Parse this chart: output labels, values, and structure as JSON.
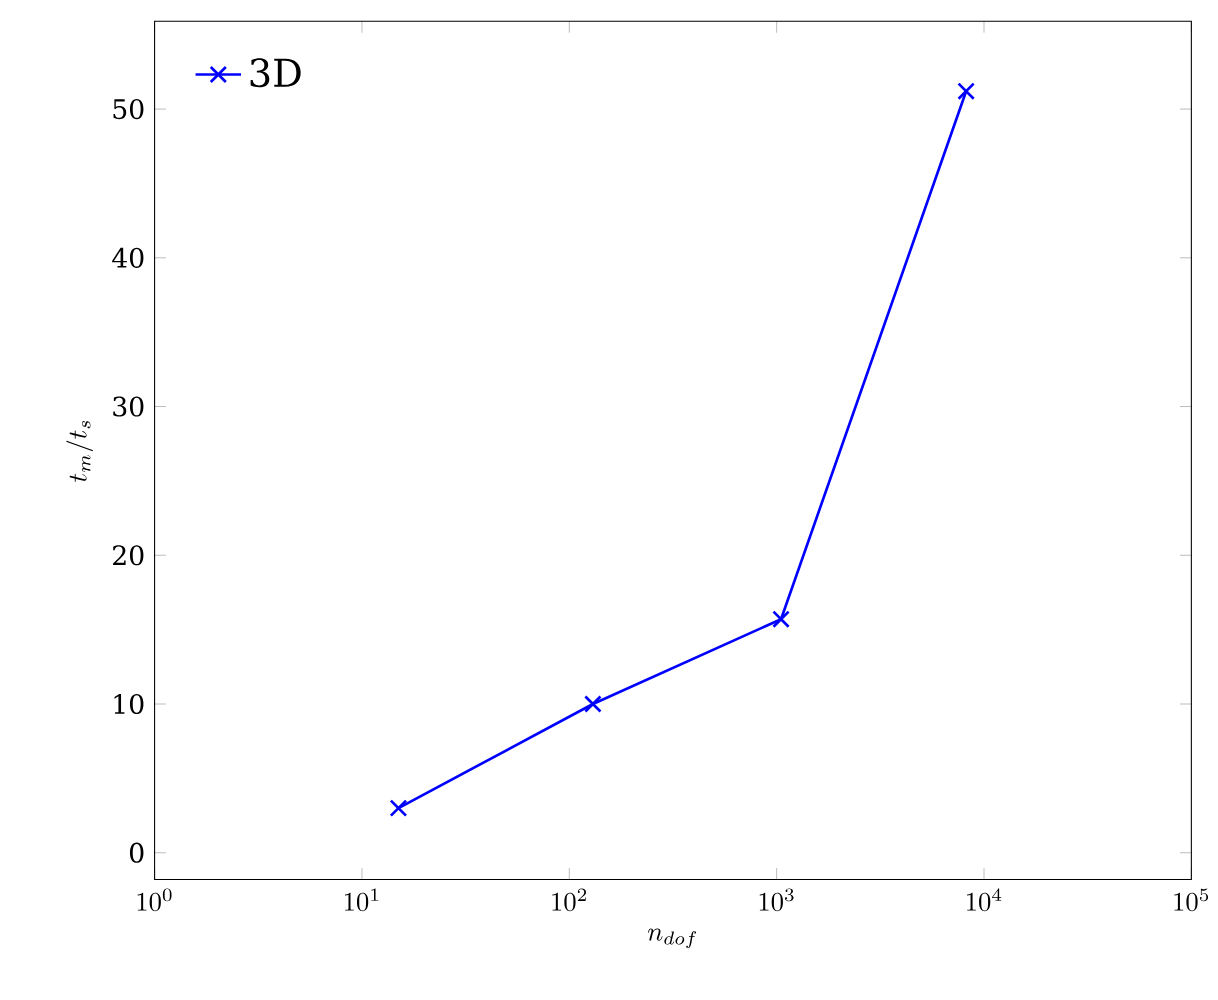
{
  "chart_data": {
    "type": "line",
    "xlabel": "n_{dof}",
    "ylabel": "t_m/t_s",
    "x": [
      15,
      130,
      1050,
      8200
    ],
    "series": [
      {
        "name": "3D",
        "color": "#0000ff",
        "values": [
          3.0,
          10.0,
          15.7,
          51.2
        ]
      }
    ],
    "log": "x",
    "xlim": [
      1,
      100000
    ],
    "ylim": [
      -1.8,
      55.9
    ],
    "xticks": [
      {
        "value": 1,
        "label": "10^{0}"
      },
      {
        "value": 10,
        "label": "10^{1}"
      },
      {
        "value": 100,
        "label": "10^{2}"
      },
      {
        "value": 1000,
        "label": "10^{3}"
      },
      {
        "value": 10000,
        "label": "10^{4}"
      },
      {
        "value": 100000,
        "label": "10^{5}"
      }
    ],
    "yticks": [
      0,
      10,
      20,
      30,
      40,
      50
    ],
    "legend": "top left",
    "marker": "cross",
    "line_style": "solid",
    "grid": false
  }
}
